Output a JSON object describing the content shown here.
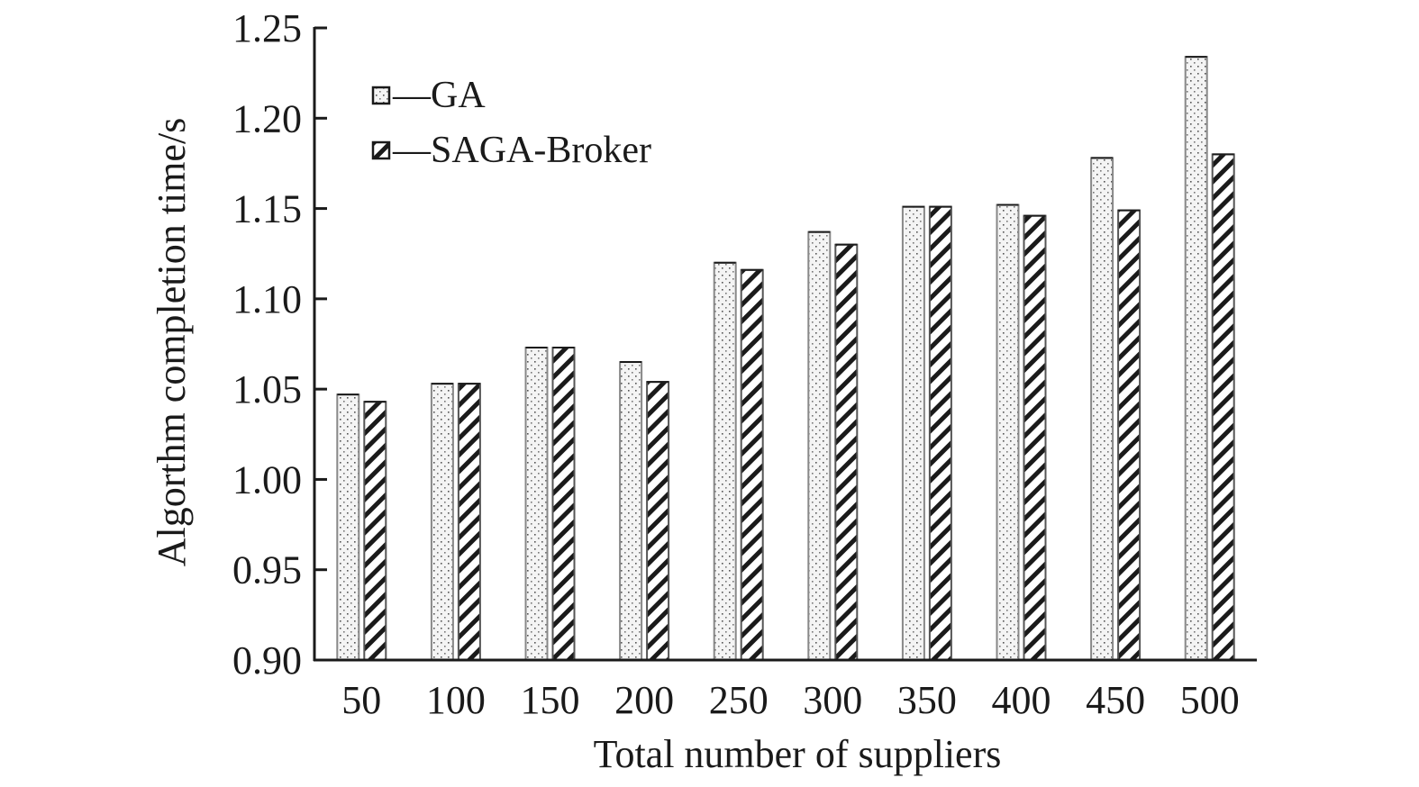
{
  "chart_data": {
    "type": "bar",
    "title": "",
    "xlabel": "Total number of suppliers",
    "ylabel": "Algorthm completion time/s",
    "ylim": [
      0.9,
      1.25
    ],
    "yticks": [
      "0.90",
      "0.95",
      "1.00",
      "1.05",
      "1.10",
      "1.15",
      "1.20",
      "1.25"
    ],
    "categories": [
      "50",
      "100",
      "150",
      "200",
      "250",
      "300",
      "350",
      "400",
      "450",
      "500"
    ],
    "grid": false,
    "legend_position": "upper-left",
    "series": [
      {
        "name": "GA",
        "pattern": "dotted",
        "values": [
          1.047,
          1.053,
          1.073,
          1.065,
          1.12,
          1.137,
          1.151,
          1.152,
          1.178,
          1.234
        ]
      },
      {
        "name": "SAGA-Broker",
        "pattern": "diagonal-hatch",
        "values": [
          1.043,
          1.053,
          1.073,
          1.054,
          1.116,
          1.13,
          1.151,
          1.146,
          1.149,
          1.18
        ]
      }
    ]
  },
  "legend": {
    "items": [
      {
        "label": "—GA"
      },
      {
        "label": "—SAGA-Broker"
      }
    ]
  }
}
